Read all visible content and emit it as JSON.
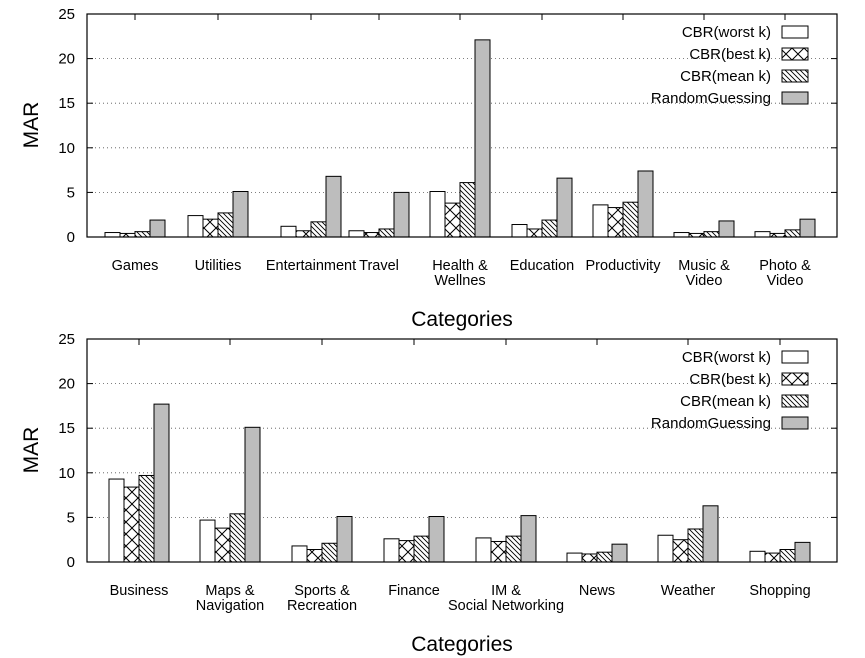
{
  "chart_data": [
    {
      "type": "bar",
      "xlabel": "Categories",
      "ylabel": "MAR",
      "ylim": [
        0,
        25
      ],
      "yticks": [
        "0",
        "5",
        "10",
        "15",
        "20",
        "25"
      ],
      "grid": "horizontal dotted",
      "legend_position": "top-right",
      "categories": [
        [
          "Games"
        ],
        [
          "Utilities"
        ],
        [
          "Entertainment"
        ],
        [
          "Travel"
        ],
        [
          "Health &",
          "Wellnes"
        ],
        [
          "Education"
        ],
        [
          "Productivity"
        ],
        [
          "Music &",
          "Video"
        ],
        [
          "Photo &",
          "Video"
        ]
      ],
      "series": [
        {
          "name": "CBR(worst k)",
          "values": [
            0.5,
            2.4,
            1.2,
            0.7,
            5.1,
            1.4,
            3.6,
            0.5,
            0.6
          ]
        },
        {
          "name": "CBR(best k)",
          "values": [
            0.4,
            2.0,
            0.7,
            0.5,
            3.8,
            0.9,
            3.3,
            0.4,
            0.4
          ]
        },
        {
          "name": "CBR(mean k)",
          "values": [
            0.6,
            2.7,
            1.7,
            0.9,
            6.1,
            1.9,
            3.9,
            0.6,
            0.8
          ]
        },
        {
          "name": "RandomGuessing",
          "values": [
            1.9,
            5.1,
            6.8,
            5.0,
            22.1,
            6.6,
            7.4,
            1.8,
            2.0
          ]
        }
      ]
    },
    {
      "type": "bar",
      "xlabel": "Categories",
      "ylabel": "MAR",
      "ylim": [
        0,
        25
      ],
      "yticks": [
        "0",
        "5",
        "10",
        "15",
        "20",
        "25"
      ],
      "grid": "horizontal dotted",
      "legend_position": "top-right",
      "categories": [
        [
          "Business"
        ],
        [
          "Maps &",
          "Navigation"
        ],
        [
          "Sports &",
          "Recreation"
        ],
        [
          "Finance"
        ],
        [
          "IM &",
          "Social Networking"
        ],
        [
          "News"
        ],
        [
          "Weather"
        ],
        [
          "Shopping"
        ]
      ],
      "series": [
        {
          "name": "CBR(worst k)",
          "values": [
            9.3,
            4.7,
            1.8,
            2.6,
            2.7,
            1.0,
            3.0,
            1.2
          ]
        },
        {
          "name": "CBR(best k)",
          "values": [
            8.4,
            3.8,
            1.4,
            2.4,
            2.3,
            0.9,
            2.5,
            1.0
          ]
        },
        {
          "name": "CBR(mean k)",
          "values": [
            9.7,
            5.4,
            2.1,
            2.9,
            2.9,
            1.1,
            3.7,
            1.4
          ]
        },
        {
          "name": "RandomGuessing",
          "values": [
            17.7,
            15.1,
            5.1,
            5.1,
            5.2,
            2.0,
            6.3,
            2.2
          ]
        }
      ]
    }
  ],
  "series_styles": [
    {
      "fill": "#ffffff",
      "pattern": "none"
    },
    {
      "fill": "#ffffff",
      "pattern": "crosshatch"
    },
    {
      "fill": "#ffffff",
      "pattern": "diagonal"
    },
    {
      "fill": "#bdbdbd",
      "pattern": "none"
    }
  ]
}
